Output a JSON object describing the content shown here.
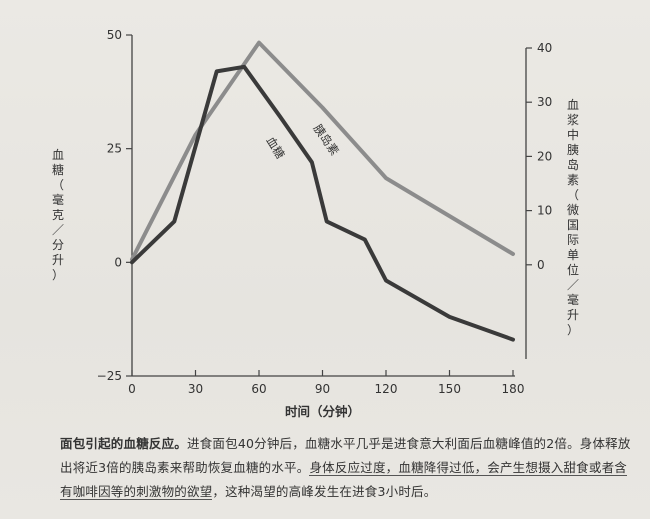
{
  "chart_data": {
    "type": "line",
    "xlabel": "时间（分钟）",
    "x_ticks": [
      0,
      30,
      60,
      90,
      120,
      150,
      180
    ],
    "xlim": [
      0,
      180
    ],
    "left_axis": {
      "label": "血糖（毫克／分升）",
      "ylim": [
        -25,
        50
      ],
      "ticks": [
        -25,
        0,
        25,
        50
      ]
    },
    "right_axis": {
      "label": "血浆中胰岛素（微国际单位／毫升）",
      "ylim": [
        -10,
        40
      ],
      "ticks": [
        0,
        10,
        20,
        30,
        40
      ]
    },
    "series": [
      {
        "name": "血糖",
        "axis": "left",
        "color": "#3a3a3a",
        "x": [
          0,
          20,
          40,
          53,
          70,
          85,
          92,
          110,
          120,
          150,
          180
        ],
        "y": [
          0,
          9,
          42,
          43,
          32,
          22,
          9,
          5,
          -4,
          -12,
          -17
        ]
      },
      {
        "name": "胰岛素",
        "axis": "right",
        "color": "#8c8c8c",
        "x": [
          0,
          30,
          60,
          90,
          120,
          180
        ],
        "y": [
          1,
          24,
          41,
          29,
          16,
          2
        ]
      }
    ],
    "grid": false
  },
  "caption": {
    "title": "面包引起的血糖反应。",
    "text1": "进食面包40分钟后，血糖水平几乎是进食意大利面后血糖峰值的2倍。身体释放出将近3倍的胰岛素来帮助恢复血糖的水平。",
    "underlined": "身体反应过度，血糖降得过低，会产生想摄入甜食或者含有咖啡因等的刺激物的欲望",
    "text2": "，这种渴望的高峰发生在进食3小时后。"
  }
}
